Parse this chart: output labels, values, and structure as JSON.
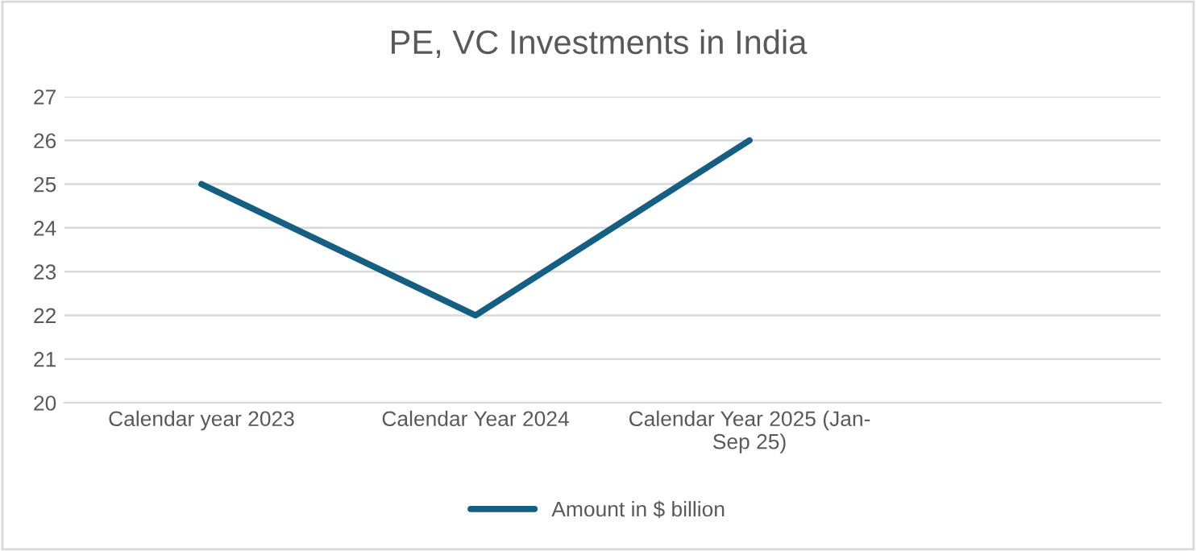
{
  "chart_data": {
    "type": "line",
    "title": "PE, VC Investments in India",
    "categories": [
      "Calendar year 2023",
      "Calendar Year 2024",
      "Calendar Year 2025 (Jan-Sep 25)",
      null
    ],
    "series": [
      {
        "name": "Amount in $ billion",
        "color": "#156082",
        "values": [
          25,
          22,
          26,
          null
        ]
      }
    ],
    "ylim": [
      20,
      27
    ],
    "yticks": [
      20,
      21,
      22,
      23,
      24,
      25,
      26,
      27
    ],
    "grid": "y",
    "legend": "bottom",
    "marker": "none",
    "line_style": "solid"
  }
}
